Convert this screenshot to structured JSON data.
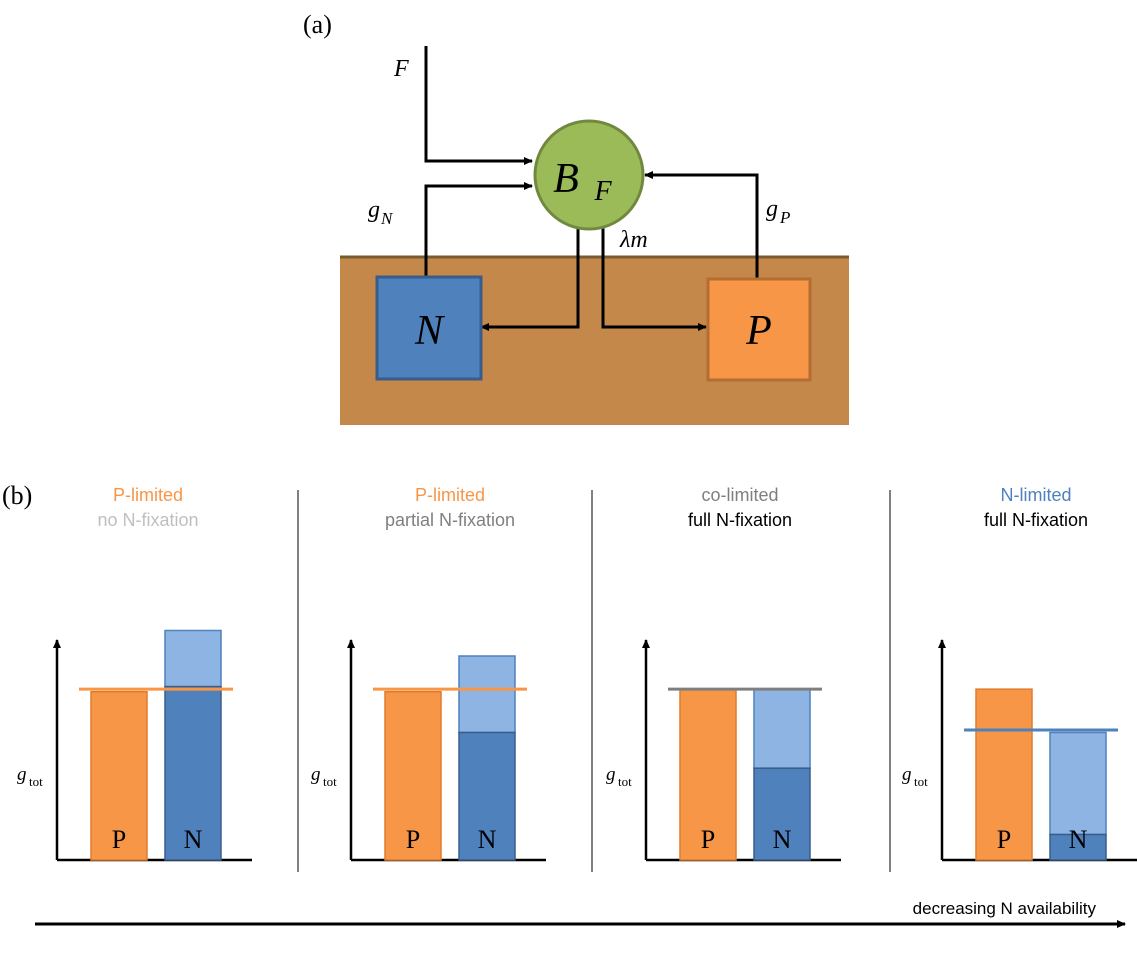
{
  "panel_a": {
    "label": "(a)",
    "nodes": {
      "biomass": {
        "main": "B",
        "sub": "F"
      },
      "nitrogen": "N",
      "phosphorus": "P"
    },
    "flows": {
      "fixation": "F",
      "n_uptake": {
        "main": "g",
        "sub": "N"
      },
      "p_uptake": {
        "main": "g",
        "sub": "P"
      },
      "mortality": "λm"
    }
  },
  "panel_b": {
    "label": "(b)",
    "axis_label": {
      "main": "g",
      "sub": "tot"
    },
    "axis_note": "decreasing N availability",
    "bar_labels": {
      "p": "P",
      "n": "N"
    },
    "colors": {
      "orange": "#F79646",
      "blue_dark": "#4F81BD",
      "blue_light": "#8EB4E3",
      "soil": "#C3884A",
      "circle": "#9BBB59",
      "gray_text": "#BFBFBF",
      "mid_text": "#7F7F7F",
      "blue_text": "#4F81BD"
    },
    "panels": [
      {
        "line1": "P-limited",
        "line2": "no N-fixation",
        "p_value": 0.66,
        "n_base": 0.68,
        "n_total": 0.9,
        "limit_level": 0.67,
        "limit_color": "orange"
      },
      {
        "line1": "P-limited",
        "line2": "partial N-fixation",
        "p_value": 0.66,
        "n_base": 0.5,
        "n_total": 0.8,
        "limit_level": 0.67,
        "limit_color": "orange"
      },
      {
        "line1": "co-limited",
        "line2": "full N-fixation",
        "p_value": 0.67,
        "n_base": 0.36,
        "n_total": 0.67,
        "limit_level": 0.67,
        "limit_color": "gray"
      },
      {
        "line1": "N-limited",
        "line2": "full N-fixation",
        "p_value": 0.67,
        "n_base": 0.1,
        "n_total": 0.5,
        "limit_level": 0.51,
        "limit_color": "blue"
      }
    ]
  }
}
